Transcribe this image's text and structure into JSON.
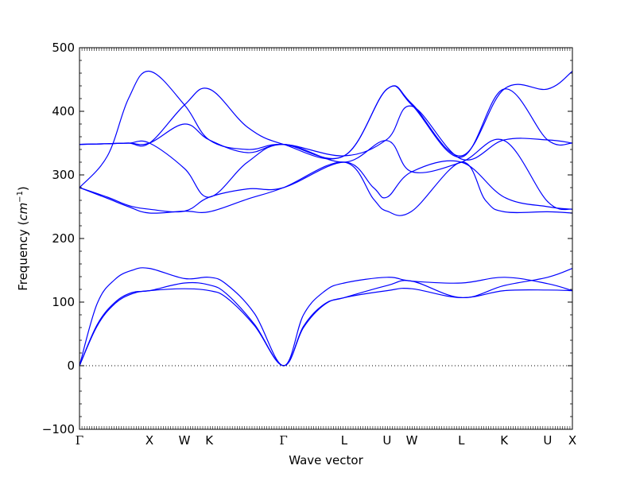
{
  "chart_data": {
    "type": "line",
    "xlabel": "Wave vector",
    "ylabel": "Frequency",
    "ylabel_unit_base": "cm",
    "ylabel_unit_exp": "−1",
    "ylim": [
      -100,
      500
    ],
    "yticks": [
      -100,
      0,
      100,
      200,
      300,
      400,
      500
    ],
    "ytick_labels": [
      "−100",
      "0",
      "100",
      "200",
      "300",
      "400",
      "500"
    ],
    "x_special_points": [
      {
        "label": "Γ",
        "x": 0.0
      },
      {
        "label": "X",
        "x": 1.0
      },
      {
        "label": "W",
        "x": 1.5
      },
      {
        "label": "K",
        "x": 1.854
      },
      {
        "label": "Γ",
        "x": 2.915
      },
      {
        "label": "L",
        "x": 3.781
      },
      {
        "label": "U",
        "x": 4.394
      },
      {
        "label": "W",
        "x": 4.748
      },
      {
        "label": "L",
        "x": 5.455
      },
      {
        "label": "K",
        "x": 6.067
      },
      {
        "label": "U",
        "x": 6.688
      },
      {
        "label": "X",
        "x": 7.042
      }
    ],
    "xlim": [
      0,
      7.042
    ],
    "line_color": "#0000ff",
    "zero_line": true,
    "grid": false,
    "bands": [
      [
        [
          0,
          0
        ],
        [
          0.25,
          62
        ],
        [
          0.5,
          97
        ],
        [
          0.75,
          113
        ],
        [
          1.0,
          118
        ],
        [
          1.5,
          121
        ],
        [
          1.854,
          118
        ],
        [
          2.1,
          107
        ],
        [
          2.5,
          63
        ],
        [
          2.915,
          0
        ],
        [
          3.2,
          60
        ],
        [
          3.5,
          96
        ],
        [
          3.781,
          107
        ],
        [
          4.394,
          118
        ],
        [
          4.748,
          121
        ],
        [
          5.455,
          107
        ],
        [
          6.067,
          118
        ],
        [
          6.688,
          119
        ],
        [
          7.042,
          118
        ]
      ],
      [
        [
          0,
          0
        ],
        [
          0.25,
          64
        ],
        [
          0.5,
          99
        ],
        [
          0.75,
          115
        ],
        [
          1.0,
          118
        ],
        [
          1.5,
          130
        ],
        [
          1.854,
          127
        ],
        [
          2.1,
          113
        ],
        [
          2.5,
          65
        ],
        [
          2.915,
          0
        ],
        [
          3.2,
          62
        ],
        [
          3.5,
          97
        ],
        [
          3.781,
          107
        ],
        [
          4.394,
          126
        ],
        [
          4.748,
          133
        ],
        [
          5.455,
          107
        ],
        [
          6.067,
          126
        ],
        [
          6.688,
          139
        ],
        [
          7.042,
          153
        ]
      ],
      [
        [
          0,
          0
        ],
        [
          0.25,
          97
        ],
        [
          0.5,
          135
        ],
        [
          0.75,
          150
        ],
        [
          1.0,
          153
        ],
        [
          1.5,
          137
        ],
        [
          1.854,
          139
        ],
        [
          2.1,
          128
        ],
        [
          2.5,
          82
        ],
        [
          2.915,
          0
        ],
        [
          3.2,
          80
        ],
        [
          3.5,
          117
        ],
        [
          3.781,
          130
        ],
        [
          4.394,
          139
        ],
        [
          4.748,
          133
        ],
        [
          5.455,
          130
        ],
        [
          6.067,
          139
        ],
        [
          6.688,
          129
        ],
        [
          7.042,
          118
        ]
      ],
      [
        [
          0,
          280
        ],
        [
          0.4,
          263
        ],
        [
          0.7,
          250
        ],
        [
          1.0,
          240
        ],
        [
          1.5,
          243
        ],
        [
          1.854,
          242
        ],
        [
          2.4,
          262
        ],
        [
          2.915,
          280
        ],
        [
          3.781,
          320
        ],
        [
          4.2,
          262
        ],
        [
          4.394,
          243
        ],
        [
          4.748,
          243
        ],
        [
          5.455,
          320
        ],
        [
          5.8,
          260
        ],
        [
          6.067,
          242
        ],
        [
          6.688,
          242
        ],
        [
          7.042,
          240
        ]
      ],
      [
        [
          0,
          280
        ],
        [
          0.4,
          265
        ],
        [
          0.7,
          252
        ],
        [
          1.0,
          246
        ],
        [
          1.5,
          243
        ],
        [
          1.854,
          265
        ],
        [
          2.4,
          278
        ],
        [
          2.915,
          280
        ],
        [
          3.781,
          320
        ],
        [
          4.2,
          280
        ],
        [
          4.394,
          265
        ],
        [
          4.748,
          305
        ],
        [
          5.455,
          320
        ],
        [
          6.067,
          265
        ],
        [
          6.688,
          250
        ],
        [
          7.042,
          246
        ]
      ],
      [
        [
          0,
          348
        ],
        [
          0.4,
          349
        ],
        [
          0.7,
          350
        ],
        [
          1.0,
          350
        ],
        [
          1.5,
          310
        ],
        [
          1.854,
          265
        ],
        [
          2.4,
          320
        ],
        [
          2.915,
          348
        ],
        [
          3.781,
          320
        ],
        [
          4.394,
          354
        ],
        [
          4.748,
          305
        ],
        [
          5.455,
          320
        ],
        [
          6.067,
          354
        ],
        [
          6.688,
          258
        ],
        [
          7.042,
          246
        ]
      ],
      [
        [
          0,
          348
        ],
        [
          0.4,
          349
        ],
        [
          0.7,
          350
        ],
        [
          1.0,
          350
        ],
        [
          1.5,
          380
        ],
        [
          1.854,
          355
        ],
        [
          2.4,
          335
        ],
        [
          2.915,
          348
        ],
        [
          3.781,
          330
        ],
        [
          4.394,
          356
        ],
        [
          4.748,
          408
        ],
        [
          5.455,
          325
        ],
        [
          6.067,
          355
        ],
        [
          6.688,
          355
        ],
        [
          7.042,
          350
        ]
      ],
      [
        [
          0,
          280
        ],
        [
          0.4,
          330
        ],
        [
          0.7,
          420
        ],
        [
          1.0,
          463
        ],
        [
          1.5,
          410
        ],
        [
          1.854,
          355
        ],
        [
          2.4,
          340
        ],
        [
          2.915,
          348
        ],
        [
          3.781,
          330
        ],
        [
          4.394,
          435
        ],
        [
          4.748,
          410
        ],
        [
          5.455,
          328
        ],
        [
          6.067,
          435
        ],
        [
          6.688,
          355
        ],
        [
          7.042,
          350
        ]
      ],
      [
        [
          0,
          348
        ],
        [
          0.4,
          349
        ],
        [
          0.7,
          350
        ],
        [
          1.0,
          350
        ],
        [
          1.5,
          410
        ],
        [
          1.854,
          435
        ],
        [
          2.4,
          375
        ],
        [
          2.915,
          348
        ],
        [
          3.781,
          330
        ],
        [
          4.394,
          435
        ],
        [
          4.748,
          412
        ],
        [
          5.455,
          330
        ],
        [
          6.067,
          435
        ],
        [
          6.688,
          435
        ],
        [
          7.042,
          463
        ]
      ]
    ]
  }
}
